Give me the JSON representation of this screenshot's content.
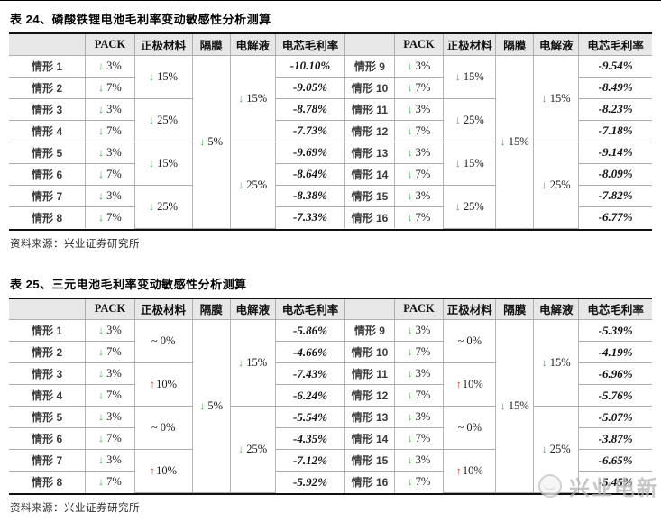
{
  "watermark": {
    "text": "兴业电新"
  },
  "tables": [
    {
      "title": "表 24、磷酸铁锂电池毛利率变动敏感性分析测算",
      "source": "资料来源：兴业证券研究所",
      "headers": [
        "",
        "PACK",
        "正极材料",
        "隔膜",
        "电解液",
        "电芯毛利率",
        "",
        "PACK",
        "正极材料",
        "隔膜",
        "电解液",
        "电芯毛利率"
      ],
      "rows": [
        [
          {
            "l": "情形 1"
          },
          {
            "a": "down",
            "v": "3%"
          },
          {
            "a": "down",
            "v": "15%",
            "rs": 2
          },
          {
            "a": "down",
            "v": "5%",
            "rs": 8
          },
          {
            "a": "down",
            "v": "15%",
            "rs": 4
          },
          {
            "m": "-10.10%"
          },
          {
            "l": "情形 9"
          },
          {
            "a": "down",
            "v": "3%"
          },
          {
            "a": "down",
            "v": "15%",
            "rs": 2
          },
          {
            "a": "down",
            "v": "15%",
            "rs": 8
          },
          {
            "a": "down",
            "v": "15%",
            "rs": 4
          },
          {
            "m": "-9.54%"
          }
        ],
        [
          {
            "l": "情形 2"
          },
          {
            "a": "down",
            "v": "7%"
          },
          {
            "m": "-9.05%"
          },
          {
            "l": "情形 10"
          },
          {
            "a": "down",
            "v": "7%"
          },
          {
            "m": "-8.49%"
          }
        ],
        [
          {
            "l": "情形 3"
          },
          {
            "a": "down",
            "v": "3%"
          },
          {
            "a": "down",
            "v": "25%",
            "rs": 2
          },
          {
            "m": "-8.78%"
          },
          {
            "l": "情形 11"
          },
          {
            "a": "down",
            "v": "3%"
          },
          {
            "a": "down",
            "v": "25%",
            "rs": 2
          },
          {
            "m": "-8.23%"
          }
        ],
        [
          {
            "l": "情形 4"
          },
          {
            "a": "down",
            "v": "7%"
          },
          {
            "m": "-7.73%"
          },
          {
            "l": "情形 12"
          },
          {
            "a": "down",
            "v": "7%"
          },
          {
            "m": "-7.18%"
          }
        ],
        [
          {
            "l": "情形 5"
          },
          {
            "a": "down",
            "v": "3%"
          },
          {
            "a": "down",
            "v": "15%",
            "rs": 2
          },
          {
            "a": "down",
            "v": "25%",
            "rs": 4
          },
          {
            "m": "-9.69%"
          },
          {
            "l": "情形 13"
          },
          {
            "a": "down",
            "v": "3%"
          },
          {
            "a": "down",
            "v": "15%",
            "rs": 2
          },
          {
            "a": "down",
            "v": "25%",
            "rs": 4
          },
          {
            "m": "-9.14%"
          }
        ],
        [
          {
            "l": "情形 6"
          },
          {
            "a": "down",
            "v": "7%"
          },
          {
            "m": "-8.64%"
          },
          {
            "l": "情形 14"
          },
          {
            "a": "down",
            "v": "7%"
          },
          {
            "m": "-8.09%"
          }
        ],
        [
          {
            "l": "情形 7"
          },
          {
            "a": "down",
            "v": "3%"
          },
          {
            "a": "down",
            "v": "25%",
            "rs": 2
          },
          {
            "m": "-8.38%"
          },
          {
            "l": "情形 15"
          },
          {
            "a": "down",
            "v": "3%"
          },
          {
            "a": "down",
            "v": "25%",
            "rs": 2
          },
          {
            "m": "-7.82%"
          }
        ],
        [
          {
            "l": "情形 8"
          },
          {
            "a": "down",
            "v": "7%"
          },
          {
            "m": "-7.33%"
          },
          {
            "l": "情形 16"
          },
          {
            "a": "down",
            "v": "7%"
          },
          {
            "m": "-6.77%"
          }
        ]
      ]
    },
    {
      "title": "表 25、三元电池毛利率变动敏感性分析测算",
      "source": "资料来源：兴业证券研究所",
      "headers": [
        "",
        "PACK",
        "正极材料",
        "隔膜",
        "电解液",
        "电芯毛利率",
        "",
        "PACK",
        "正极材料",
        "隔膜",
        "电解液",
        "电芯毛利率"
      ],
      "rows": [
        [
          {
            "l": "情形 1"
          },
          {
            "a": "down",
            "v": "3%"
          },
          {
            "a": "none",
            "v": "~ 0%",
            "rs": 2
          },
          {
            "a": "down",
            "v": "5%",
            "rs": 8
          },
          {
            "a": "down",
            "v": "15%",
            "rs": 4
          },
          {
            "m": "-5.86%"
          },
          {
            "l": "情形 9"
          },
          {
            "a": "down",
            "v": "3%"
          },
          {
            "a": "none",
            "v": "~ 0%",
            "rs": 2
          },
          {
            "a": "down",
            "v": "15%",
            "rs": 8
          },
          {
            "a": "down",
            "v": "15%",
            "rs": 4
          },
          {
            "m": "-5.39%"
          }
        ],
        [
          {
            "l": "情形 2"
          },
          {
            "a": "down",
            "v": "7%"
          },
          {
            "m": "-4.66%"
          },
          {
            "l": "情形 10"
          },
          {
            "a": "down",
            "v": "7%"
          },
          {
            "m": "-4.19%"
          }
        ],
        [
          {
            "l": "情形 3"
          },
          {
            "a": "down",
            "v": "3%"
          },
          {
            "a": "up",
            "v": "10%",
            "rs": 2
          },
          {
            "m": "-7.43%"
          },
          {
            "l": "情形 11"
          },
          {
            "a": "down",
            "v": "3%"
          },
          {
            "a": "up",
            "v": "10%",
            "rs": 2
          },
          {
            "m": "-6.96%"
          }
        ],
        [
          {
            "l": "情形 4"
          },
          {
            "a": "down",
            "v": "7%"
          },
          {
            "m": "-6.24%"
          },
          {
            "l": "情形 12"
          },
          {
            "a": "down",
            "v": "7%"
          },
          {
            "m": "-5.76%"
          }
        ],
        [
          {
            "l": "情形 5"
          },
          {
            "a": "down",
            "v": "3%"
          },
          {
            "a": "none",
            "v": "~ 0%",
            "rs": 2
          },
          {
            "a": "down",
            "v": "25%",
            "rs": 4
          },
          {
            "m": "-5.54%"
          },
          {
            "l": "情形 13"
          },
          {
            "a": "down",
            "v": "3%"
          },
          {
            "a": "none",
            "v": "~ 0%",
            "rs": 2
          },
          {
            "a": "down",
            "v": "25%",
            "rs": 4
          },
          {
            "m": "-5.07%"
          }
        ],
        [
          {
            "l": "情形 6"
          },
          {
            "a": "down",
            "v": "7%"
          },
          {
            "m": "-4.35%"
          },
          {
            "l": "情形 14"
          },
          {
            "a": "down",
            "v": "7%"
          },
          {
            "m": "-3.87%"
          }
        ],
        [
          {
            "l": "情形 7"
          },
          {
            "a": "down",
            "v": "3%"
          },
          {
            "a": "up",
            "v": "10%",
            "rs": 2
          },
          {
            "m": "-7.12%"
          },
          {
            "l": "情形 15"
          },
          {
            "a": "down",
            "v": "3%"
          },
          {
            "a": "up",
            "v": "10%",
            "rs": 2
          },
          {
            "m": "-6.65%"
          }
        ],
        [
          {
            "l": "情形 8"
          },
          {
            "a": "down",
            "v": "7%"
          },
          {
            "m": "-5.92%"
          },
          {
            "l": "情形 16"
          },
          {
            "a": "down",
            "v": "7%"
          },
          {
            "m": "-5.45%"
          }
        ]
      ]
    }
  ]
}
